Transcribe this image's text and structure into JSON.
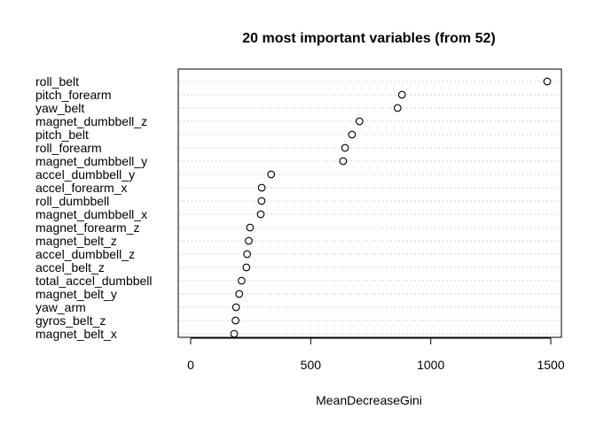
{
  "chart_data": {
    "type": "scatter",
    "subtype": "dotchart",
    "title": "20 most important variables (from 52)",
    "xlabel": "MeanDecreaseGini",
    "ylabel": "",
    "xlim": [
      -10,
      1500
    ],
    "xticks": [
      "0",
      "500",
      "1000",
      "1500"
    ],
    "grid": "dotted horizontal lines per variable",
    "point_style": "open circle",
    "variables": [
      {
        "name": "roll_belt",
        "value": 1485
      },
      {
        "name": "pitch_forearm",
        "value": 880
      },
      {
        "name": "yaw_belt",
        "value": 862
      },
      {
        "name": "magnet_dumbbell_z",
        "value": 703
      },
      {
        "name": "pitch_belt",
        "value": 672
      },
      {
        "name": "roll_forearm",
        "value": 643
      },
      {
        "name": "magnet_dumbbell_y",
        "value": 635
      },
      {
        "name": "accel_dumbbell_y",
        "value": 335
      },
      {
        "name": "accel_forearm_x",
        "value": 296
      },
      {
        "name": "roll_dumbbell",
        "value": 295
      },
      {
        "name": "magnet_dumbbell_x",
        "value": 292
      },
      {
        "name": "magnet_forearm_z",
        "value": 247
      },
      {
        "name": "magnet_belt_z",
        "value": 242
      },
      {
        "name": "accel_dumbbell_z",
        "value": 235
      },
      {
        "name": "accel_belt_z",
        "value": 232
      },
      {
        "name": "total_accel_dumbbell",
        "value": 212
      },
      {
        "name": "magnet_belt_y",
        "value": 202
      },
      {
        "name": "yaw_arm",
        "value": 189
      },
      {
        "name": "gyros_belt_z",
        "value": 187
      },
      {
        "name": "magnet_belt_x",
        "value": 181
      }
    ]
  }
}
